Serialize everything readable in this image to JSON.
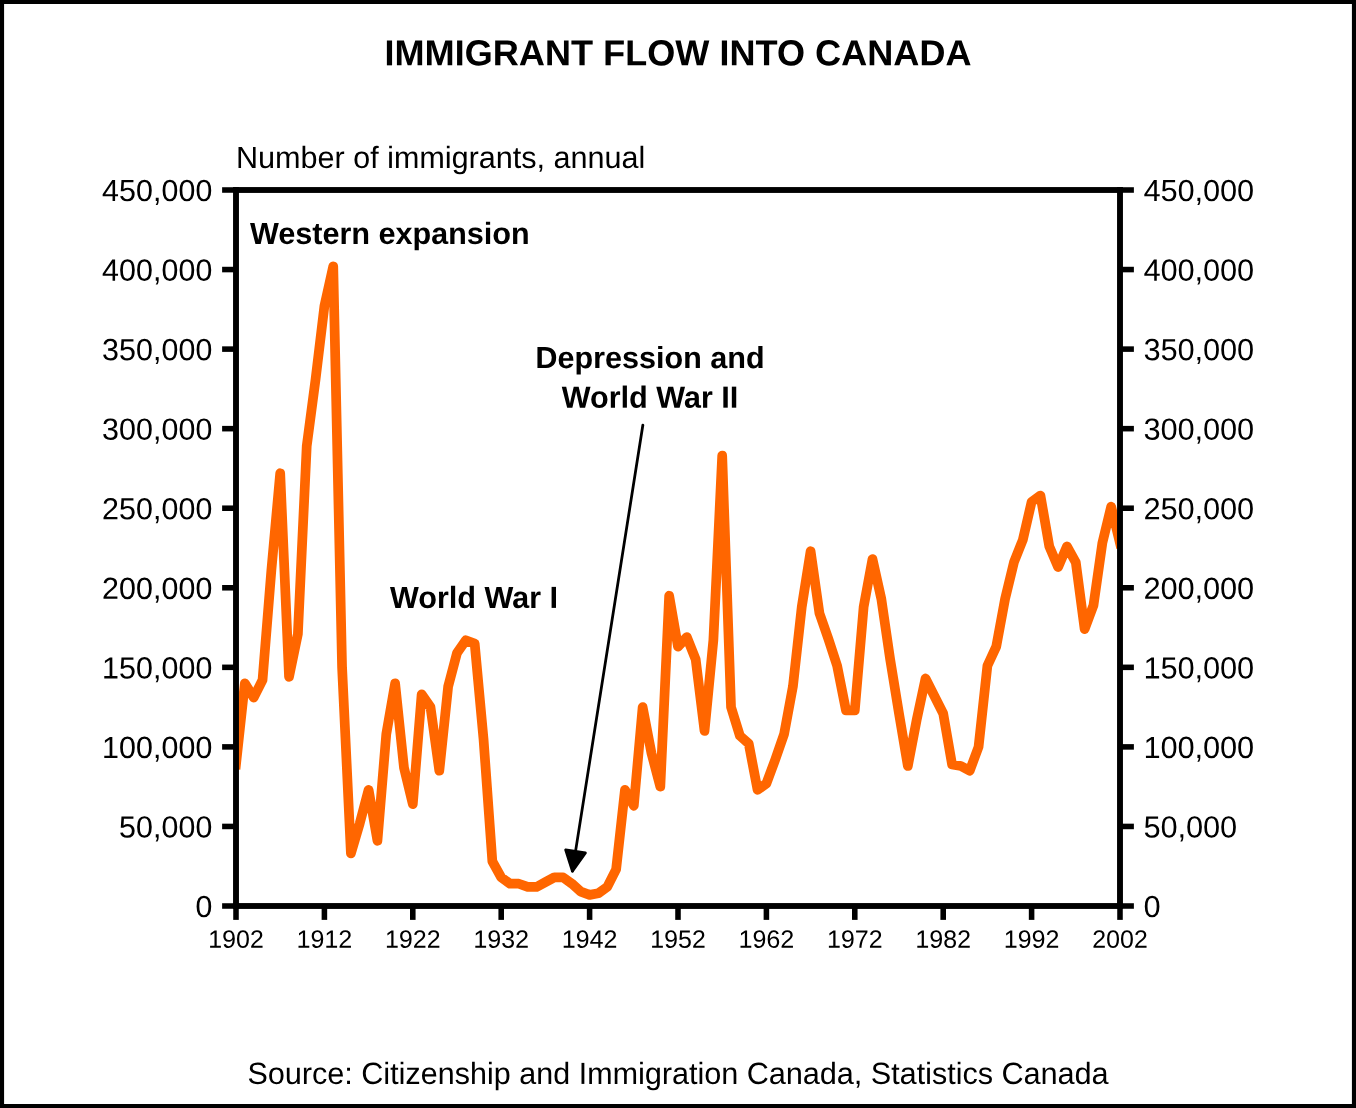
{
  "chart_data": {
    "type": "line",
    "title": "IMMIGRANT FLOW INTO CANADA",
    "ylabel": "Number of immigrants, annual",
    "x": [
      1902,
      1903,
      1904,
      1905,
      1906,
      1907,
      1908,
      1909,
      1910,
      1911,
      1912,
      1913,
      1914,
      1915,
      1916,
      1917,
      1918,
      1919,
      1920,
      1921,
      1922,
      1923,
      1924,
      1925,
      1926,
      1927,
      1928,
      1929,
      1930,
      1931,
      1932,
      1933,
      1934,
      1935,
      1936,
      1937,
      1938,
      1939,
      1940,
      1941,
      1942,
      1943,
      1944,
      1945,
      1946,
      1947,
      1948,
      1949,
      1950,
      1951,
      1952,
      1953,
      1954,
      1955,
      1956,
      1957,
      1958,
      1959,
      1960,
      1961,
      1962,
      1963,
      1964,
      1965,
      1966,
      1967,
      1968,
      1969,
      1970,
      1971,
      1972,
      1973,
      1974,
      1975,
      1976,
      1977,
      1978,
      1979,
      1980,
      1981,
      1982,
      1983,
      1984,
      1985,
      1986,
      1987,
      1988,
      1989,
      1990,
      1991,
      1992,
      1993,
      1994,
      1995,
      1996,
      1997,
      1998,
      1999,
      2000,
      2001,
      2002
    ],
    "series": [
      {
        "color": "#ff6600",
        "values": [
          89000,
          140000,
          131000,
          142000,
          211000,
          272000,
          144000,
          171000,
          289000,
          331000,
          377000,
          402000,
          150000,
          33000,
          52000,
          73000,
          41000,
          108000,
          140000,
          87000,
          64000,
          133000,
          125000,
          85000,
          138000,
          159000,
          167000,
          165000,
          105000,
          28000,
          18000,
          14000,
          14000,
          12000,
          12000,
          15000,
          18000,
          18000,
          14000,
          9000,
          7000,
          8000,
          12000,
          23000,
          73000,
          63000,
          125000,
          96000,
          75000,
          195000,
          163000,
          169000,
          155000,
          110000,
          167000,
          283000,
          125000,
          107000,
          102000,
          73000,
          77000,
          92000,
          108000,
          138000,
          188000,
          223000,
          184000,
          168000,
          151000,
          123000,
          123000,
          188000,
          218000,
          193000,
          155000,
          121000,
          88000,
          117000,
          143000,
          132000,
          121000,
          89000,
          88000,
          85000,
          100000,
          151000,
          163000,
          193000,
          216000,
          230000,
          254000,
          258000,
          226000,
          213000,
          226000,
          216000,
          174000,
          189000,
          228000,
          251000,
          228000
        ]
      }
    ],
    "xlim": [
      1902,
      2002
    ],
    "xticks": [
      1902,
      1912,
      1922,
      1932,
      1942,
      1952,
      1962,
      1972,
      1982,
      1992,
      2002
    ],
    "ylim": [
      0,
      450000
    ],
    "yticks": [
      {
        "value": 0,
        "label": "0"
      },
      {
        "value": 50000,
        "label": "50,000"
      },
      {
        "value": 100000,
        "label": "100,000"
      },
      {
        "value": 150000,
        "label": "150,000"
      },
      {
        "value": 200000,
        "label": "200,000"
      },
      {
        "value": 250000,
        "label": "250,000"
      },
      {
        "value": 300000,
        "label": "300,000"
      },
      {
        "value": 350000,
        "label": "350,000"
      },
      {
        "value": 400000,
        "label": "400,000"
      },
      {
        "value": 450000,
        "label": "450,000"
      }
    ],
    "y2lim": [
      0,
      450000
    ],
    "y2ticks": [
      {
        "value": 0,
        "label": "0"
      },
      {
        "value": 50000,
        "label": "50,000"
      },
      {
        "value": 100000,
        "label": "100,000"
      },
      {
        "value": 150000,
        "label": "150,000"
      },
      {
        "value": 200000,
        "label": "200,000"
      },
      {
        "value": 250000,
        "label": "250,000"
      },
      {
        "value": 300000,
        "label": "300,000"
      },
      {
        "value": 350000,
        "label": "350,000"
      },
      {
        "value": 400000,
        "label": "400,000"
      },
      {
        "value": 450000,
        "label": "450,000"
      }
    ],
    "annotations": [
      "Western expansion",
      "World War I",
      {
        "text": "Depression and\nWorld War II",
        "x": 1940,
        "y": 20000
      },
      "Source: Citizenship and Immigration Canada, Statistics Canada"
    ],
    "grid": false,
    "legend": false,
    "marker": "none",
    "line_style": "solid"
  }
}
